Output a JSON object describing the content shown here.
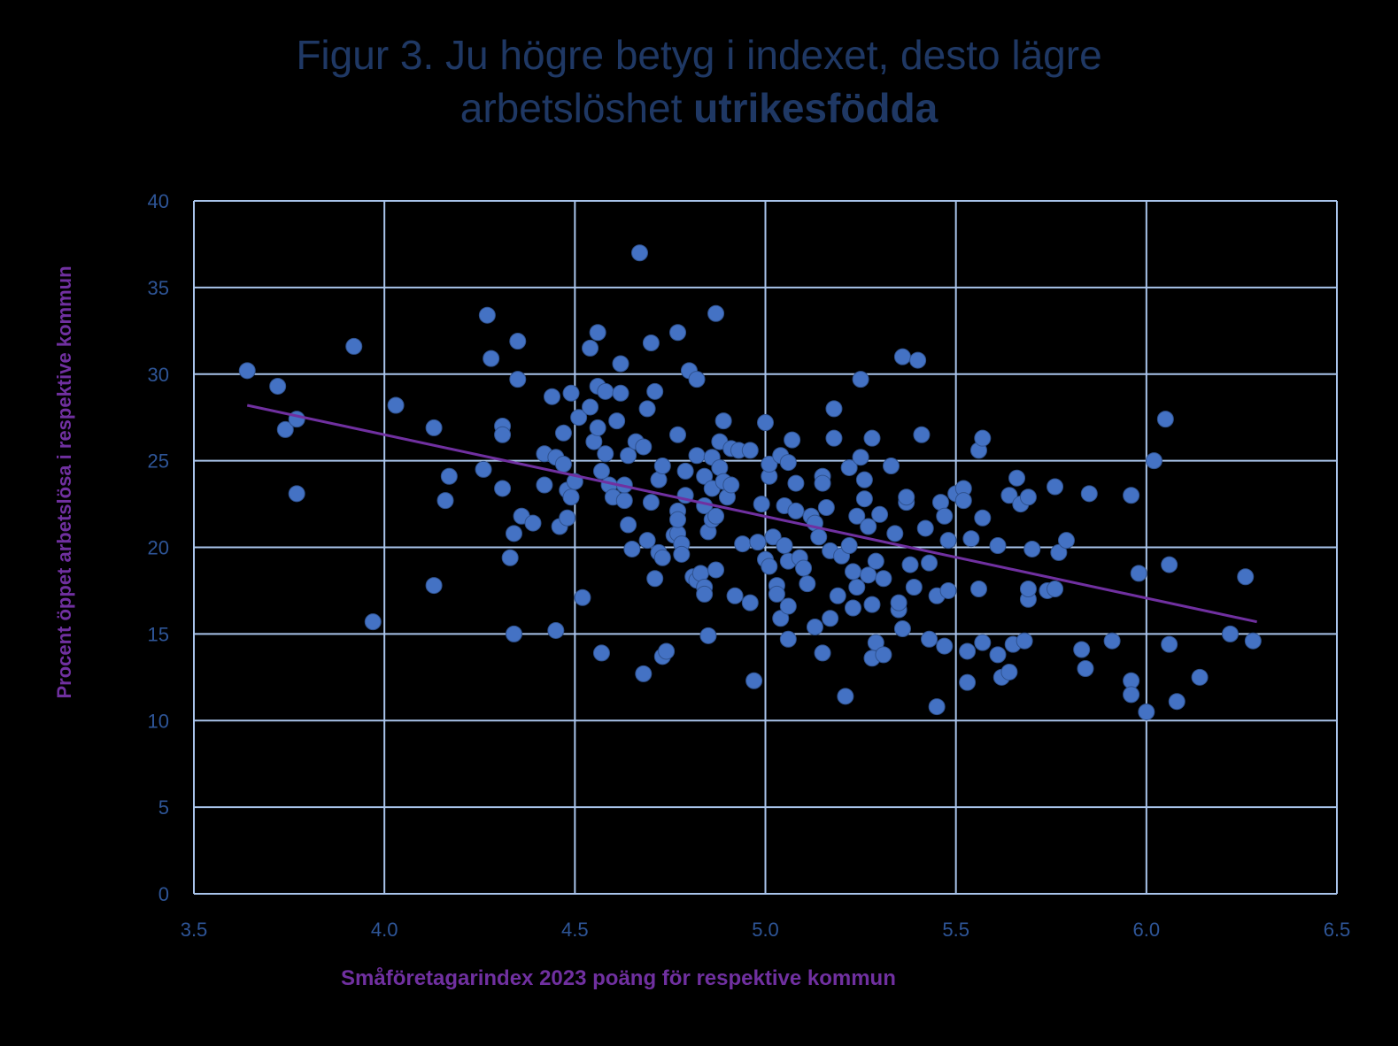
{
  "title_line1": "Figur 3. Ju högre betyg i indexet, desto lägre",
  "title_line2_regular": "arbetslöshet ",
  "title_line2_bold": "utrikesfödda",
  "colors": {
    "title": "#1f3864",
    "axis_label": "#7030a0",
    "tick": "#2e5597",
    "grid": "#a9c4eb",
    "point": "#4472c4",
    "trend": "#7030a0",
    "background": "#000000"
  },
  "chart_data": {
    "type": "scatter",
    "title": "Figur 3. Ju högre betyg i indexet, desto lägre arbetslöshet utrikesfödda",
    "xlabel": "Småföretagarindex 2023 poäng för respektive kommun",
    "ylabel": "Procent öppet arbetslösa i respektive kommun",
    "xlim": [
      3.5,
      6.5
    ],
    "ylim": [
      0,
      40
    ],
    "x_ticks": [
      "3.5",
      "4.0",
      "4.5",
      "5.0",
      "5.5",
      "6.0",
      "6.5"
    ],
    "y_ticks": [
      "0",
      "5",
      "10",
      "15",
      "20",
      "25",
      "30",
      "35",
      "40"
    ],
    "grid": true,
    "trendline": {
      "x": [
        3.64,
        6.29
      ],
      "y": [
        28.2,
        15.7
      ]
    },
    "points": [
      [
        3.64,
        30.2
      ],
      [
        3.72,
        29.3
      ],
      [
        3.74,
        26.8
      ],
      [
        3.77,
        27.4
      ],
      [
        3.77,
        23.1
      ],
      [
        3.92,
        31.6
      ],
      [
        3.97,
        15.7
      ],
      [
        4.03,
        28.2
      ],
      [
        4.13,
        26.9
      ],
      [
        4.13,
        17.8
      ],
      [
        4.16,
        22.7
      ],
      [
        4.17,
        24.1
      ],
      [
        4.26,
        24.5
      ],
      [
        4.27,
        33.4
      ],
      [
        4.28,
        30.9
      ],
      [
        4.31,
        27.0
      ],
      [
        4.31,
        26.5
      ],
      [
        4.31,
        23.4
      ],
      [
        4.33,
        19.4
      ],
      [
        4.34,
        20.8
      ],
      [
        4.34,
        15.0
      ],
      [
        4.35,
        31.9
      ],
      [
        4.35,
        29.7
      ],
      [
        4.36,
        21.8
      ],
      [
        4.39,
        21.4
      ],
      [
        4.42,
        25.4
      ],
      [
        4.42,
        23.6
      ],
      [
        4.44,
        28.7
      ],
      [
        4.45,
        25.2
      ],
      [
        4.45,
        15.2
      ],
      [
        4.46,
        21.2
      ],
      [
        4.47,
        26.6
      ],
      [
        4.47,
        24.8
      ],
      [
        4.48,
        23.3
      ],
      [
        4.48,
        21.7
      ],
      [
        4.49,
        28.9
      ],
      [
        4.49,
        22.9
      ],
      [
        4.5,
        23.8
      ],
      [
        4.51,
        27.5
      ],
      [
        4.52,
        17.1
      ],
      [
        4.54,
        28.1
      ],
      [
        4.54,
        31.5
      ],
      [
        4.55,
        26.1
      ],
      [
        4.56,
        29.3
      ],
      [
        4.56,
        32.4
      ],
      [
        4.56,
        26.9
      ],
      [
        4.57,
        24.4
      ],
      [
        4.57,
        13.9
      ],
      [
        4.58,
        25.4
      ],
      [
        4.58,
        29.0
      ],
      [
        4.59,
        23.6
      ],
      [
        4.6,
        22.9
      ],
      [
        4.61,
        27.3
      ],
      [
        4.62,
        30.6
      ],
      [
        4.62,
        28.9
      ],
      [
        4.63,
        22.7
      ],
      [
        4.63,
        23.6
      ],
      [
        4.64,
        21.3
      ],
      [
        4.64,
        25.3
      ],
      [
        4.65,
        19.9
      ],
      [
        4.66,
        26.1
      ],
      [
        4.67,
        37.0
      ],
      [
        4.68,
        12.7
      ],
      [
        4.68,
        25.8
      ],
      [
        4.69,
        28.0
      ],
      [
        4.69,
        20.4
      ],
      [
        4.7,
        22.6
      ],
      [
        4.7,
        31.8
      ],
      [
        4.71,
        29.0
      ],
      [
        4.71,
        18.2
      ],
      [
        4.72,
        23.9
      ],
      [
        4.72,
        19.7
      ],
      [
        4.73,
        24.7
      ],
      [
        4.73,
        19.4
      ],
      [
        4.73,
        13.7
      ],
      [
        4.74,
        14.0
      ],
      [
        4.76,
        20.7
      ],
      [
        4.77,
        20.8
      ],
      [
        4.77,
        32.4
      ],
      [
        4.77,
        26.5
      ],
      [
        4.77,
        22.1
      ],
      [
        4.77,
        21.6
      ],
      [
        4.78,
        20.2
      ],
      [
        4.78,
        19.6
      ],
      [
        4.79,
        24.4
      ],
      [
        4.79,
        23.0
      ],
      [
        4.8,
        30.2
      ],
      [
        4.81,
        18.3
      ],
      [
        4.82,
        29.7
      ],
      [
        4.82,
        25.3
      ],
      [
        4.82,
        18.1
      ],
      [
        4.83,
        18.5
      ],
      [
        4.84,
        17.7
      ],
      [
        4.84,
        17.3
      ],
      [
        4.84,
        22.4
      ],
      [
        4.84,
        24.1
      ],
      [
        4.85,
        14.9
      ],
      [
        4.85,
        20.9
      ],
      [
        4.86,
        21.6
      ],
      [
        4.86,
        25.2
      ],
      [
        4.86,
        23.4
      ],
      [
        4.87,
        18.7
      ],
      [
        4.87,
        33.5
      ],
      [
        4.87,
        21.8
      ],
      [
        4.88,
        26.1
      ],
      [
        4.88,
        24.6
      ],
      [
        4.89,
        27.3
      ],
      [
        4.89,
        23.8
      ],
      [
        4.9,
        22.9
      ],
      [
        4.91,
        23.6
      ],
      [
        4.91,
        25.7
      ],
      [
        4.92,
        17.2
      ],
      [
        4.93,
        25.6
      ],
      [
        4.94,
        20.2
      ],
      [
        4.96,
        16.8
      ],
      [
        4.96,
        25.6
      ],
      [
        4.97,
        12.3
      ],
      [
        4.98,
        20.3
      ],
      [
        4.99,
        22.5
      ],
      [
        5.0,
        19.3
      ],
      [
        5.0,
        27.2
      ],
      [
        5.01,
        24.1
      ],
      [
        5.01,
        24.8
      ],
      [
        5.01,
        18.9
      ],
      [
        5.02,
        20.6
      ],
      [
        5.03,
        17.8
      ],
      [
        5.03,
        17.3
      ],
      [
        5.04,
        15.9
      ],
      [
        5.04,
        25.3
      ],
      [
        5.05,
        22.4
      ],
      [
        5.05,
        20.1
      ],
      [
        5.06,
        19.2
      ],
      [
        5.06,
        14.7
      ],
      [
        5.06,
        16.6
      ],
      [
        5.06,
        24.9
      ],
      [
        5.07,
        26.2
      ],
      [
        5.08,
        23.7
      ],
      [
        5.08,
        22.1
      ],
      [
        5.09,
        19.4
      ],
      [
        5.1,
        18.8
      ],
      [
        5.11,
        17.9
      ],
      [
        5.12,
        21.8
      ],
      [
        5.13,
        15.4
      ],
      [
        5.13,
        21.4
      ],
      [
        5.14,
        20.6
      ],
      [
        5.15,
        13.9
      ],
      [
        5.15,
        24.1
      ],
      [
        5.15,
        23.7
      ],
      [
        5.16,
        22.3
      ],
      [
        5.17,
        15.9
      ],
      [
        5.17,
        19.8
      ],
      [
        5.18,
        28.0
      ],
      [
        5.18,
        26.3
      ],
      [
        5.19,
        17.2
      ],
      [
        5.2,
        19.5
      ],
      [
        5.21,
        11.4
      ],
      [
        5.22,
        24.6
      ],
      [
        5.22,
        20.1
      ],
      [
        5.23,
        16.5
      ],
      [
        5.23,
        18.6
      ],
      [
        5.24,
        21.8
      ],
      [
        5.24,
        17.7
      ],
      [
        5.25,
        29.7
      ],
      [
        5.25,
        25.2
      ],
      [
        5.26,
        22.8
      ],
      [
        5.26,
        23.9
      ],
      [
        5.27,
        21.2
      ],
      [
        5.27,
        18.4
      ],
      [
        5.28,
        13.6
      ],
      [
        5.28,
        26.3
      ],
      [
        5.28,
        16.7
      ],
      [
        5.29,
        14.5
      ],
      [
        5.29,
        19.2
      ],
      [
        5.3,
        21.9
      ],
      [
        5.31,
        13.8
      ],
      [
        5.31,
        18.2
      ],
      [
        5.33,
        24.7
      ],
      [
        5.34,
        20.8
      ],
      [
        5.35,
        16.4
      ],
      [
        5.35,
        16.8
      ],
      [
        5.36,
        31.0
      ],
      [
        5.36,
        15.3
      ],
      [
        5.37,
        22.6
      ],
      [
        5.37,
        22.9
      ],
      [
        5.38,
        19.0
      ],
      [
        5.39,
        17.7
      ],
      [
        5.4,
        30.8
      ],
      [
        5.41,
        26.5
      ],
      [
        5.42,
        21.1
      ],
      [
        5.43,
        19.1
      ],
      [
        5.43,
        14.7
      ],
      [
        5.45,
        17.2
      ],
      [
        5.45,
        10.8
      ],
      [
        5.46,
        22.6
      ],
      [
        5.47,
        21.8
      ],
      [
        5.47,
        14.3
      ],
      [
        5.48,
        20.4
      ],
      [
        5.48,
        17.5
      ],
      [
        5.5,
        23.1
      ],
      [
        5.52,
        23.4
      ],
      [
        5.52,
        22.7
      ],
      [
        5.53,
        14.0
      ],
      [
        5.53,
        12.2
      ],
      [
        5.54,
        20.5
      ],
      [
        5.56,
        25.6
      ],
      [
        5.56,
        17.6
      ],
      [
        5.57,
        14.5
      ],
      [
        5.57,
        21.7
      ],
      [
        5.57,
        26.3
      ],
      [
        5.61,
        13.8
      ],
      [
        5.61,
        20.1
      ],
      [
        5.62,
        12.5
      ],
      [
        5.64,
        12.8
      ],
      [
        5.64,
        23.0
      ],
      [
        5.65,
        14.4
      ],
      [
        5.66,
        24.0
      ],
      [
        5.67,
        22.5
      ],
      [
        5.68,
        14.6
      ],
      [
        5.69,
        17.0
      ],
      [
        5.69,
        17.6
      ],
      [
        5.69,
        22.9
      ],
      [
        5.7,
        19.9
      ],
      [
        5.74,
        17.5
      ],
      [
        5.76,
        17.6
      ],
      [
        5.76,
        23.5
      ],
      [
        5.77,
        19.7
      ],
      [
        5.79,
        20.4
      ],
      [
        5.83,
        14.1
      ],
      [
        5.84,
        13.0
      ],
      [
        5.85,
        23.1
      ],
      [
        5.91,
        14.6
      ],
      [
        5.96,
        12.3
      ],
      [
        5.96,
        11.5
      ],
      [
        5.96,
        23.0
      ],
      [
        5.98,
        18.5
      ],
      [
        6.0,
        10.5
      ],
      [
        6.02,
        25.0
      ],
      [
        6.05,
        27.4
      ],
      [
        6.06,
        14.4
      ],
      [
        6.06,
        19.0
      ],
      [
        6.08,
        11.1
      ],
      [
        6.14,
        12.5
      ],
      [
        6.22,
        15.0
      ],
      [
        6.26,
        18.3
      ],
      [
        6.28,
        14.6
      ]
    ]
  }
}
